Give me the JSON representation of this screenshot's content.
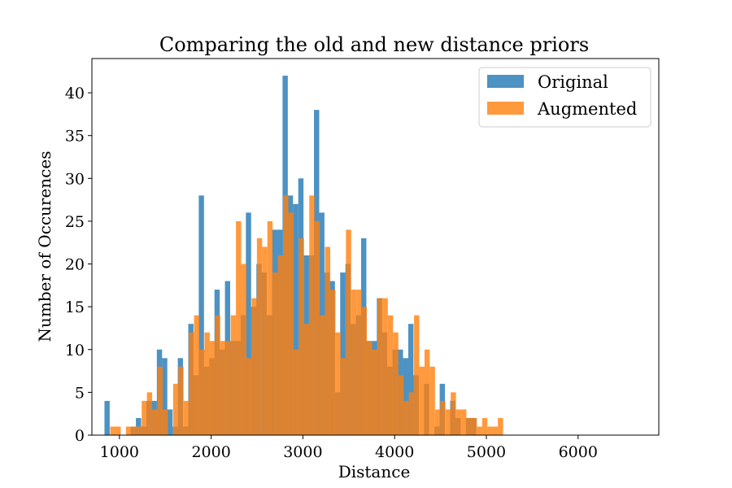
{
  "chart_data": {
    "type": "bar",
    "title": "Comparing the old and new distance priors",
    "xlabel": "Distance",
    "ylabel": "Number of Occurences",
    "xlim": [
      700,
      6880
    ],
    "ylim": [
      0,
      44
    ],
    "x_ticks": [
      1000,
      2000,
      3000,
      4000,
      5000,
      6000
    ],
    "y_ticks": [
      0,
      5,
      10,
      15,
      20,
      25,
      30,
      35,
      40
    ],
    "grid": false,
    "legend_position": "top-right",
    "series": [
      {
        "name": "Original",
        "color": "#1f77b4",
        "opacity": 0.8,
        "bin_start": 837,
        "bin_width": 57.1,
        "values": [
          4,
          0,
          0,
          0,
          0,
          1,
          2,
          1,
          4,
          4,
          10,
          9,
          3,
          1,
          9,
          1,
          13,
          7,
          28,
          8,
          9,
          17,
          10,
          18,
          11,
          11,
          14,
          26,
          15,
          20,
          19,
          14,
          24,
          24,
          42,
          28,
          27,
          30,
          21,
          21,
          38,
          26,
          19,
          18,
          5,
          19,
          20,
          13,
          14,
          23,
          11,
          11,
          16,
          12,
          8,
          10,
          10,
          9,
          13,
          7,
          0,
          6,
          0,
          1,
          6,
          0,
          4,
          2,
          0,
          2,
          2
        ]
      },
      {
        "name": "Augmented",
        "color": "#ff7f0e",
        "opacity": 0.8,
        "bin_start": 900,
        "bin_width": 57.1,
        "values": [
          1,
          1,
          0,
          1,
          1,
          1,
          4,
          5,
          3,
          8,
          3,
          0,
          6,
          8,
          4,
          12,
          14,
          10,
          12,
          11,
          14,
          11,
          11,
          14,
          25,
          20,
          9,
          16,
          23,
          22,
          25,
          19,
          21,
          28,
          26,
          10,
          23,
          13,
          28,
          25,
          14,
          22,
          17,
          12,
          9,
          24,
          17,
          17,
          15,
          11,
          10,
          16,
          16,
          14,
          12,
          7,
          4,
          5,
          14,
          8,
          10,
          8,
          3,
          4,
          3,
          5,
          3,
          3,
          2,
          2,
          1,
          2,
          1,
          1,
          2
        ]
      }
    ]
  }
}
